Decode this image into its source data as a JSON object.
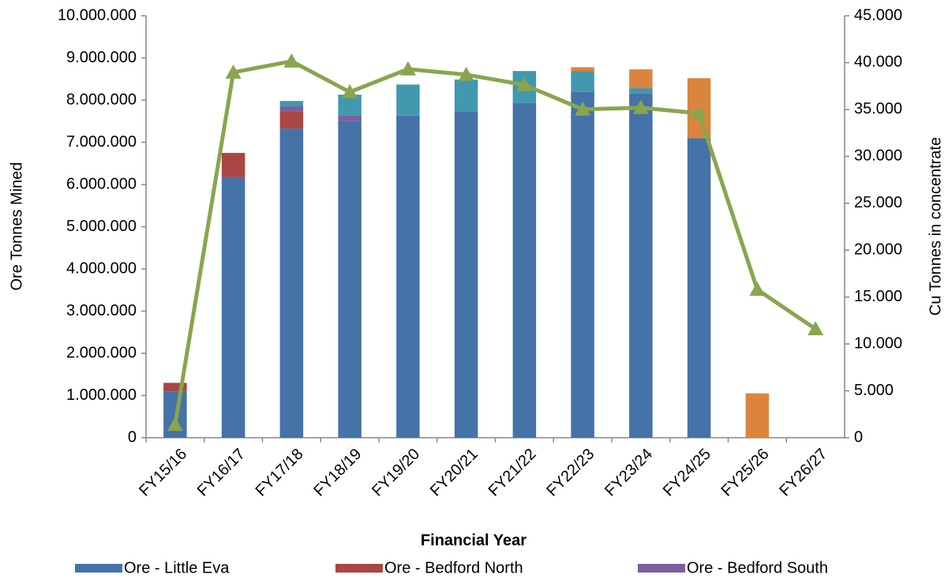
{
  "chart_data": {
    "type": "bar",
    "stacked": true,
    "x_label": "Financial Year",
    "y_label": "Ore Tonnes Mined",
    "y2_label": "Cu Tonnes in concentrate",
    "categories": [
      "FY15/16",
      "FY16/17",
      "FY17/18",
      "FY18/19",
      "FY19/20",
      "FY20/21",
      "FY21/22",
      "FY22/23",
      "FY23/24",
      "FY24/25",
      "FY25/26",
      "FY26/27"
    ],
    "series": [
      {
        "name": "Ore - Little Eva",
        "color": "#4572a7",
        "values": [
          1100000,
          6170000,
          7330000,
          7510000,
          7630000,
          7720000,
          7940000,
          8200000,
          8150000,
          7100000,
          0,
          0
        ]
      },
      {
        "name": "Ore - Bedford North",
        "color": "#aa4643",
        "values": [
          200000,
          580000,
          400000,
          0,
          0,
          0,
          0,
          0,
          0,
          0,
          0,
          0
        ]
      },
      {
        "name": "Ore - Bedford South",
        "color": "#7d5fa0",
        "values": [
          0,
          0,
          120000,
          130000,
          0,
          0,
          0,
          0,
          0,
          0,
          0,
          0
        ]
      },
      {
        "color": "#4198af",
        "values": [
          0,
          0,
          130000,
          490000,
          740000,
          770000,
          750000,
          490000,
          130000,
          0,
          0,
          0
        ]
      },
      {
        "color": "#db843d",
        "values": [
          0,
          0,
          0,
          0,
          0,
          0,
          0,
          90000,
          450000,
          1420000,
          1050000,
          0
        ]
      },
      {
        "type": "line",
        "axis": "y2",
        "color": "#89a54e",
        "values": [
          1400,
          38970,
          40150,
          36870,
          39310,
          38720,
          37630,
          35020,
          35190,
          34600,
          15800,
          11600
        ]
      }
    ],
    "ylim": [
      0,
      10000000
    ],
    "yticks": [
      0,
      {
        "value": 1000000,
        "label": "1.000.000"
      },
      {
        "value": 2000000,
        "label": "2.000.000"
      },
      {
        "value": 3000000,
        "label": "3.000.000"
      },
      {
        "value": 4000000,
        "label": "4.000.000"
      },
      {
        "value": 5000000,
        "label": "5.000.000"
      },
      {
        "value": 6000000,
        "label": "6.000.000"
      },
      {
        "value": 7000000,
        "label": "7.000.000"
      },
      {
        "value": 8000000,
        "label": "8.000.000"
      },
      {
        "value": 9000000,
        "label": "9.000.000"
      },
      {
        "value": 10000000,
        "label": "10.000.000"
      }
    ],
    "y2lim": [
      0,
      45000
    ],
    "y2ticks": [
      0,
      {
        "value": 5000,
        "label": "5.000"
      },
      {
        "value": 10000,
        "label": "10.000"
      },
      {
        "value": 15000,
        "label": "15.000"
      },
      {
        "value": 20000,
        "label": "20.000"
      },
      {
        "value": 25000,
        "label": "25.000"
      },
      {
        "value": 30000,
        "label": "30.000"
      },
      {
        "value": 35000,
        "label": "35.000"
      },
      {
        "value": 40000,
        "label": "40.000"
      },
      {
        "value": 45000,
        "label": "45.000"
      }
    ],
    "grid": false,
    "legend": "bottom"
  }
}
